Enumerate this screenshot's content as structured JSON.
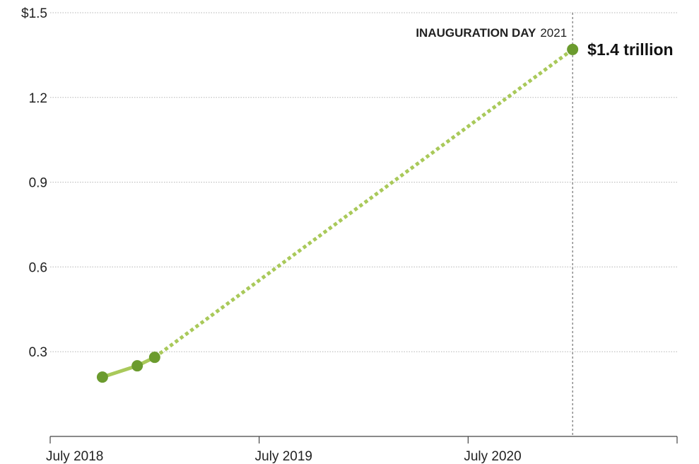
{
  "chart_data": {
    "type": "line",
    "title": "",
    "xlabel": "",
    "ylabel": "",
    "y_tick_labels": [
      "$1.5",
      "1.2",
      "0.9",
      "0.6",
      "0.3"
    ],
    "y_tick_values": [
      1.5,
      1.2,
      0.9,
      0.6,
      0.3
    ],
    "ylim": [
      0,
      1.5
    ],
    "x_tick_labels": [
      "July 2018",
      "July 2019",
      "July 2020"
    ],
    "x_tick_values": [
      "2018-07",
      "2019-07",
      "2020-07"
    ],
    "xlim": [
      "2018-07",
      "2021-07"
    ],
    "grid": true,
    "series": [
      {
        "color": "#6b9b2e",
        "line_color": "#a9c95a",
        "points": [
          {
            "x": "2018-10",
            "y": 0.21
          },
          {
            "x": "2018-12",
            "y": 0.25
          },
          {
            "x": "2019-01",
            "y": 0.28
          },
          {
            "x": "2021-01",
            "y": 1.37
          }
        ]
      }
    ],
    "annotations": {
      "event_date": "2021-01",
      "event_label_bold": "INAUGURATION DAY",
      "event_label_year": "2021",
      "end_label": "$1.4 trillion"
    }
  }
}
